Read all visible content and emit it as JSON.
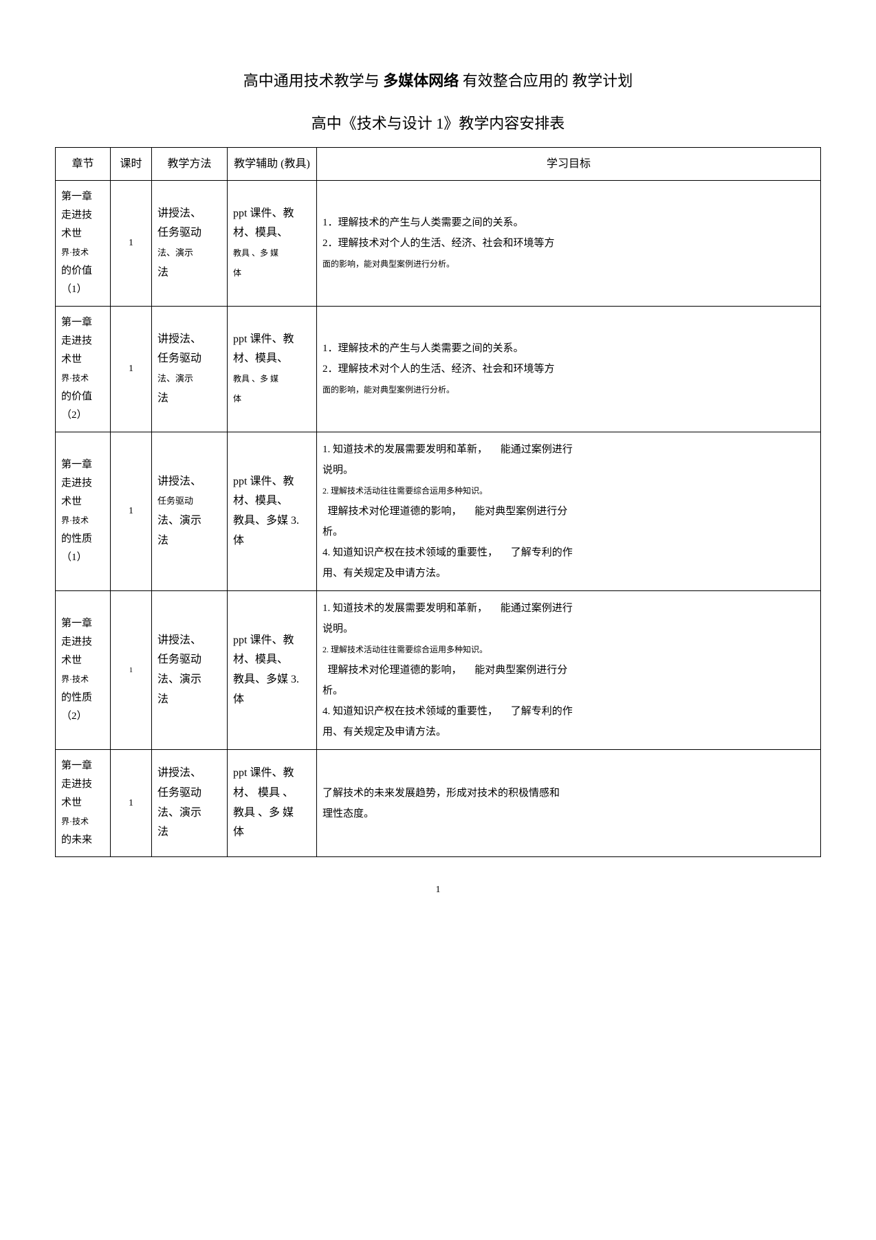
{
  "title": {
    "main_prefix": "高中通用技术教学与",
    "main_bold": "多媒体网络",
    "main_mid": "有效整合应用的",
    "main_suffix": "教学计划",
    "sub": "高中《技术与设计 1》教学内容安排表"
  },
  "columns": {
    "c1": "章节",
    "c2": "课时",
    "c3": "教学方法",
    "c4": "教学辅助 (教具)",
    "c5": "学习目标"
  },
  "rows": [
    {
      "chapter_l1": "第一章",
      "chapter_l2": "走进技",
      "chapter_l3": "术世",
      "chapter_l4": "界·技术",
      "chapter_l5": "的价值",
      "chapter_l6": "（1）",
      "hours": "1",
      "method_l1": "讲授法、",
      "method_l2": "任务驱动",
      "method_l3": "法、演示",
      "method_l4": "法",
      "aid_l1": "ppt 课件、教",
      "aid_l2": "材、模具、",
      "aid_l3": "教具 、多 媒",
      "aid_l4": "体",
      "goal_l1": "1．理解技术的产生与人类需要之间的关系。",
      "goal_l2": "2．理解技术对个人的生活、经济、社会和环境等方",
      "goal_l3": "面的影响，能对典型案例进行分析。"
    },
    {
      "chapter_l1": "第一章",
      "chapter_l2": "走进技",
      "chapter_l3": "术世",
      "chapter_l4": "界·技术",
      "chapter_l5": "的价值",
      "chapter_l6": "（2）",
      "hours": "1",
      "method_l1": "讲授法、",
      "method_l2": "任务驱动",
      "method_l3": "法、演示",
      "method_l4": "法",
      "aid_l1": "ppt 课件、教",
      "aid_l2": "材、模具、",
      "aid_l3": "教具 、多 媒",
      "aid_l4": "体",
      "goal_l1": "1．理解技术的产生与人类需要之间的关系。",
      "goal_l2": "2．理解技术对个人的生活、经济、社会和环境等方",
      "goal_l3": "面的影响，能对典型案例进行分析。"
    },
    {
      "chapter_l1": "第一章",
      "chapter_l2": "走进技",
      "chapter_l3": "术世",
      "chapter_l4": "界·技术",
      "chapter_l5": "的性质",
      "chapter_l6": "（1）",
      "hours": "1",
      "method_l1": "讲授法、",
      "method_l2": "任务驱动",
      "method_l3": "法、演示",
      "method_l4": "法",
      "aid_l1": "ppt 课件、教",
      "aid_l2": "材、模具、",
      "aid_l3": "教具、多媒 3.",
      "aid_l4": "体",
      "goal_l1a": "1. 知道技术的发展需要发明和革新，",
      "goal_l1b": "能通过案例进行",
      "goal_l2": "说明。",
      "goal_l3": "2. 理解技术活动往往需要综合运用多种知识。",
      "goal_l4a": "理解技术对伦理道德的影响，",
      "goal_l4b": "能对典型案例进行分",
      "goal_l5": "析。",
      "goal_l6a": "4. 知道知识产权在技术领域的重要性，",
      "goal_l6b": "了解专利的作",
      "goal_l7": "用、有关规定及申请方法。"
    },
    {
      "chapter_l1": "第一章",
      "chapter_l2": "走进技",
      "chapter_l3": "术世",
      "chapter_l4": "界·技术",
      "chapter_l5": "的性质",
      "chapter_l6": "（2）",
      "hours": "1",
      "method_l1": "讲授法、",
      "method_l2": "任务驱动",
      "method_l3": "法、演示",
      "method_l4": "法",
      "aid_l1": "ppt 课件、教",
      "aid_l2": "材、模具、",
      "aid_l3": "教具、多媒  3.",
      "aid_l4": "体",
      "goal_l1a": "1. 知道技术的发展需要发明和革新，",
      "goal_l1b": "能通过案例进行",
      "goal_l2": "说明。",
      "goal_l3": "2. 理解技术活动往往需要综合运用多种知识。",
      "goal_l4a": "理解技术对伦理道德的影响，",
      "goal_l4b": "能对典型案例进行分",
      "goal_l5": "析。",
      "goal_l6a": "4. 知道知识产权在技术领域的重要性，",
      "goal_l6b": "了解专利的作",
      "goal_l7": "用、有关规定及申请方法。"
    },
    {
      "chapter_l1": "第一章",
      "chapter_l2": "走进技",
      "chapter_l3": "术世",
      "chapter_l4": "界·技术",
      "chapter_l5": "的未来",
      "chapter_l6": "",
      "hours": "1",
      "method_l1": "讲授法、",
      "method_l2": "任务驱动",
      "method_l3": "法、演示",
      "method_l4": "法",
      "aid_l1": "ppt 课件、教",
      "aid_l2": "材、 模具 、",
      "aid_l3": "教具 、多 媒",
      "aid_l4": "体",
      "goal_l1": "了解技术的未来发展趋势，形成对技术的积极情感和",
      "goal_l2": "理性态度。"
    }
  ],
  "page_num": "1",
  "style": {
    "border_color": "#000000",
    "background": "#ffffff"
  }
}
